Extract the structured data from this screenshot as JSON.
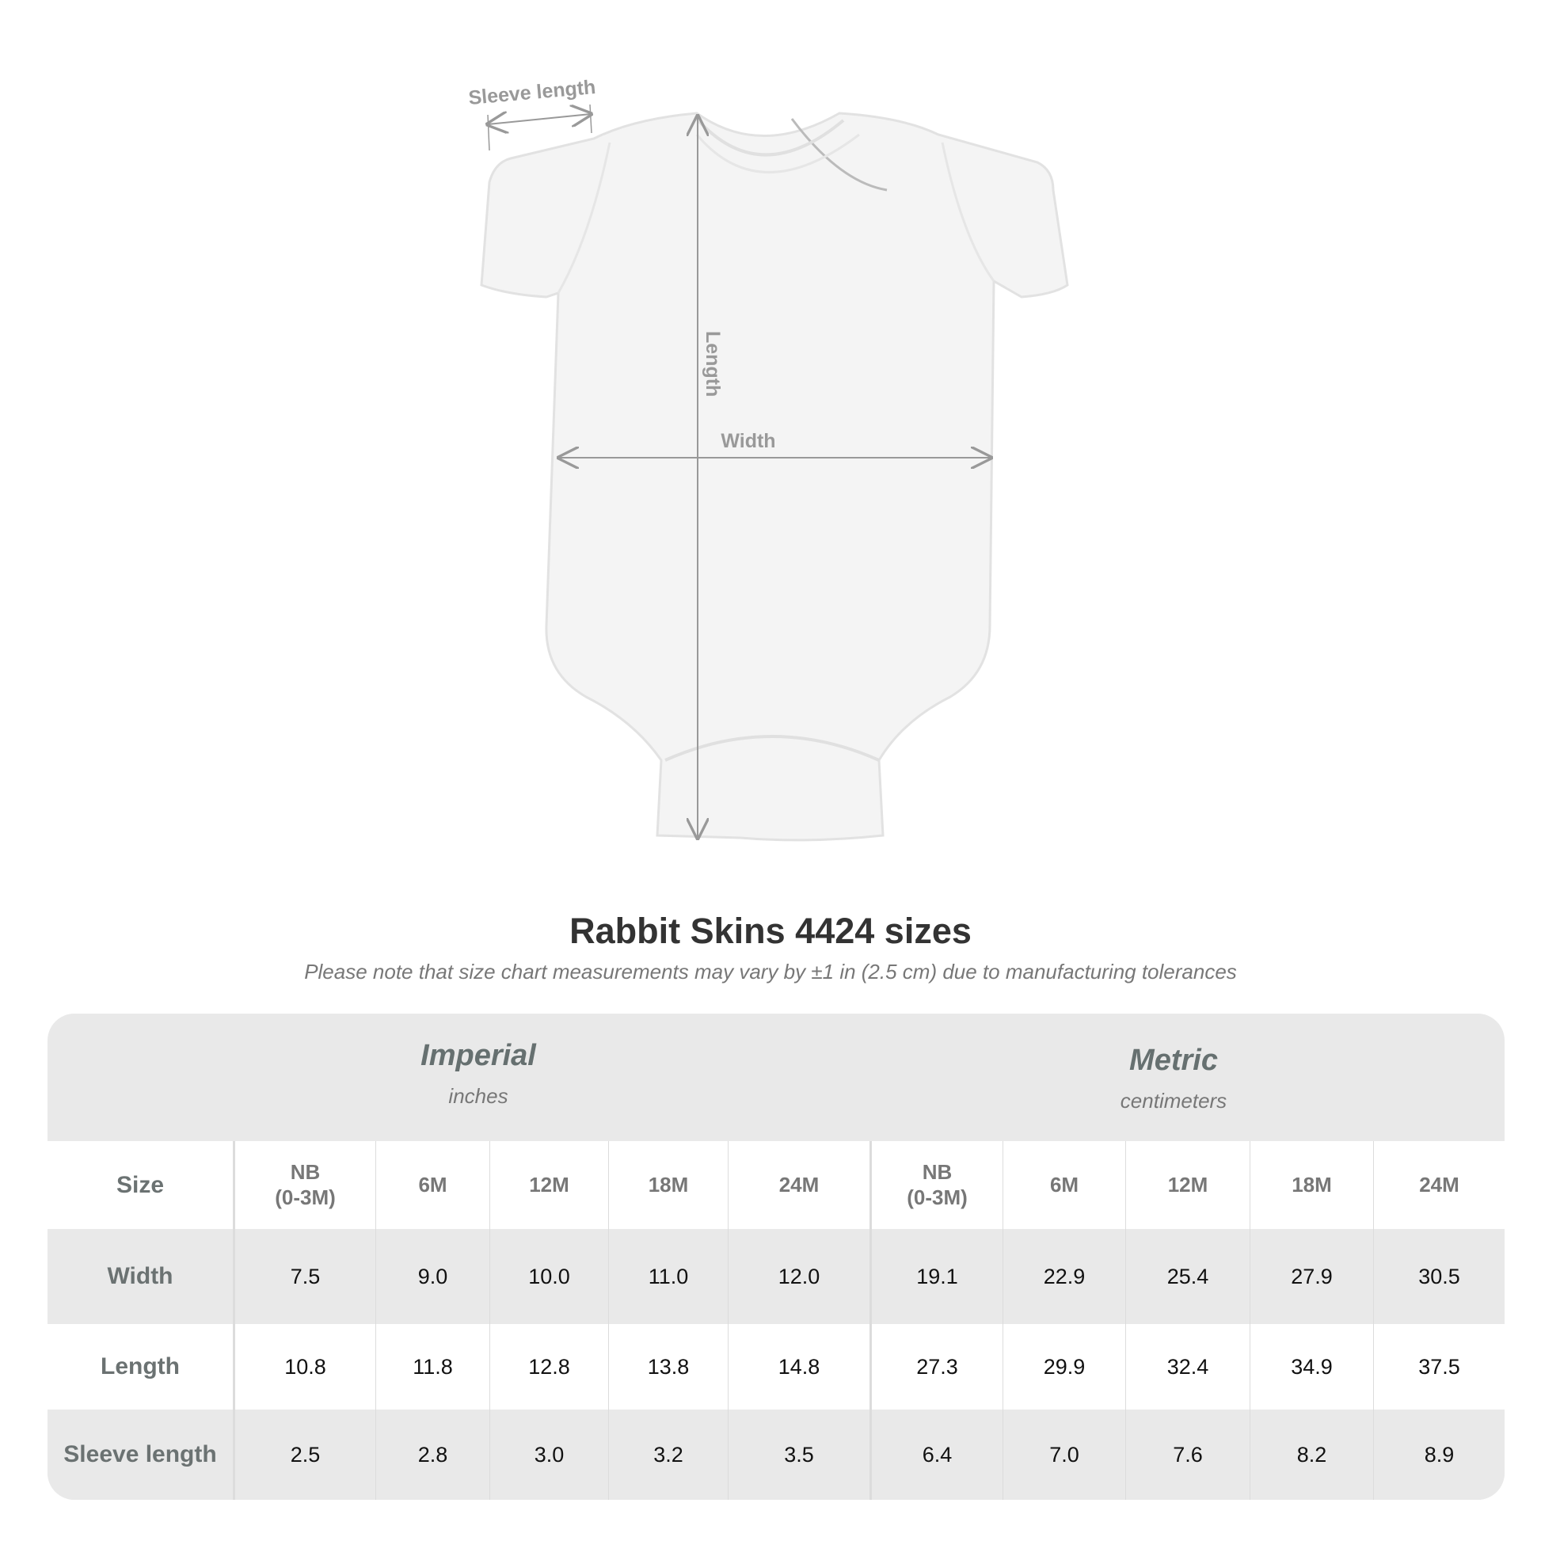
{
  "diagram": {
    "labels": {
      "sleeve": "Sleeve length",
      "length": "Length",
      "width": "Width"
    }
  },
  "title": "Rabbit Skins 4424 sizes",
  "subtitle": "Please note that size chart measurements may vary by ±1 in (2.5 cm) due to manufacturing tolerances",
  "table": {
    "imperial": {
      "name": "Imperial",
      "unit": "inches"
    },
    "metric": {
      "name": "Metric",
      "unit": "centimeters"
    },
    "size_label": "Size",
    "sizes": [
      "NB\n(0-3M)",
      "6M",
      "12M",
      "18M",
      "24M"
    ],
    "rows": [
      {
        "label": "Width",
        "imperial": [
          "7.5",
          "9.0",
          "10.0",
          "11.0",
          "12.0"
        ],
        "metric": [
          "19.1",
          "22.9",
          "25.4",
          "27.9",
          "30.5"
        ]
      },
      {
        "label": "Length",
        "imperial": [
          "10.8",
          "11.8",
          "12.8",
          "13.8",
          "14.8"
        ],
        "metric": [
          "27.3",
          "29.9",
          "32.4",
          "34.9",
          "37.5"
        ]
      },
      {
        "label": "Sleeve length",
        "imperial": [
          "2.5",
          "2.8",
          "3.0",
          "3.2",
          "3.5"
        ],
        "metric": [
          "6.4",
          "7.0",
          "7.6",
          "8.2",
          "8.9"
        ]
      }
    ]
  },
  "colors": {
    "band": "#e9e9e9",
    "label": "#6b7272",
    "measure": "#999999"
  }
}
